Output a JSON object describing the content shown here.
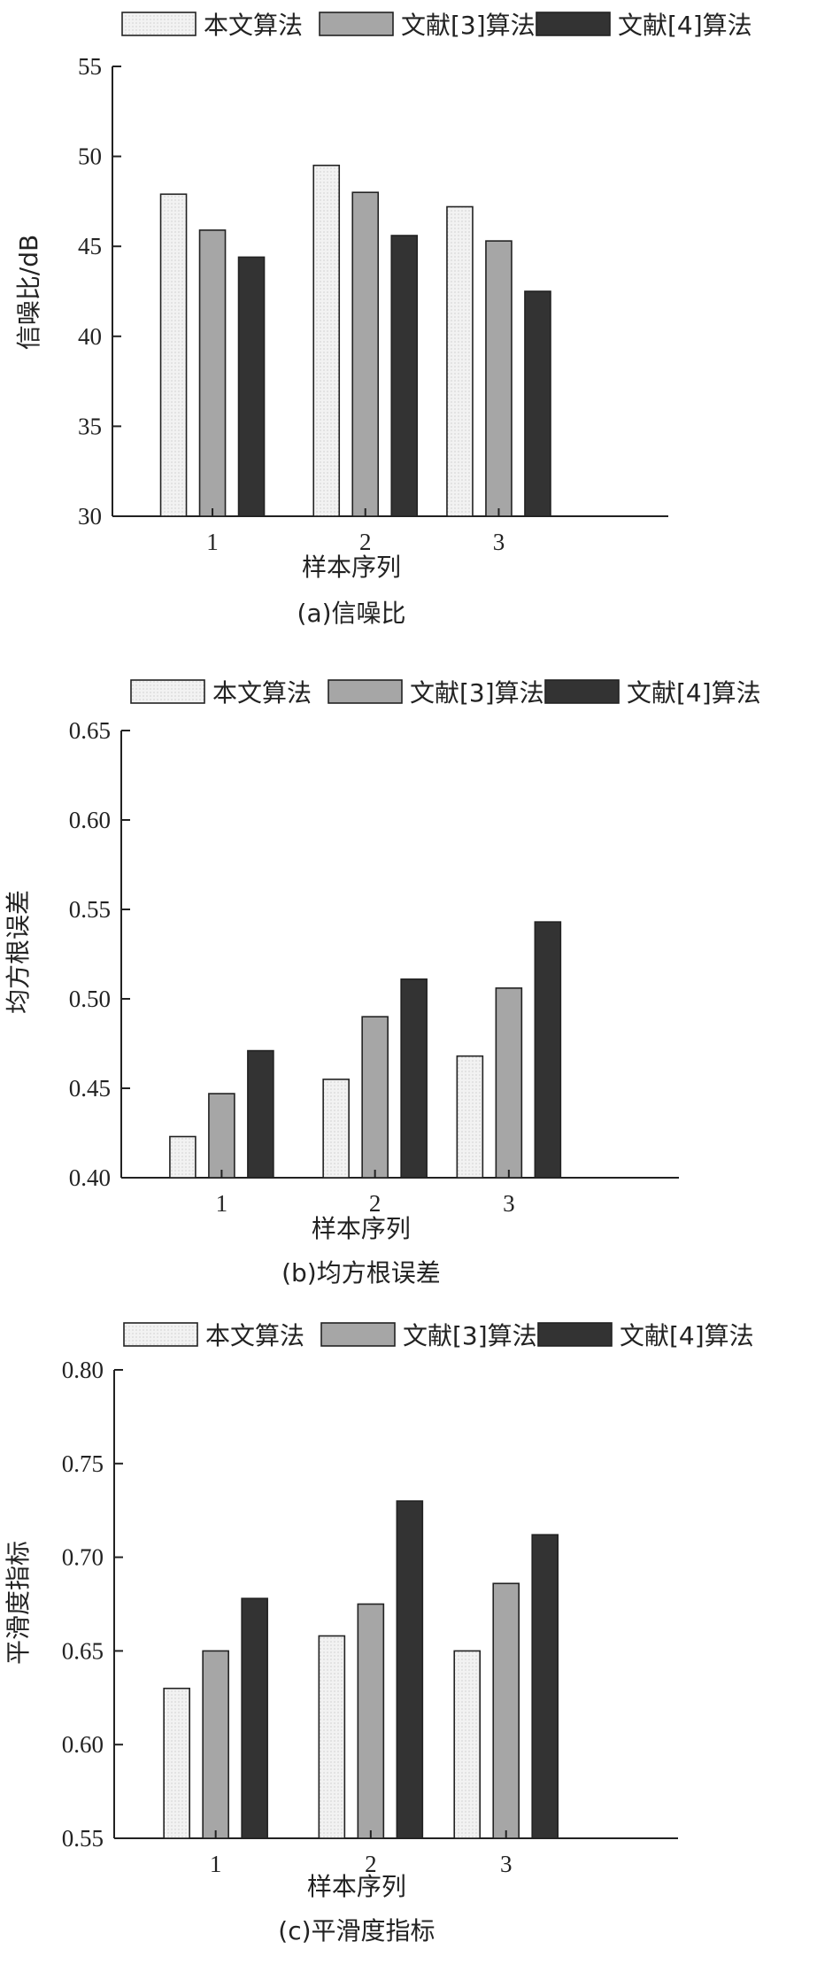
{
  "chart_data": [
    {
      "type": "bar",
      "categories": [
        "1",
        "2",
        "3"
      ],
      "series": [
        {
          "name": "本文算法",
          "values": [
            47.9,
            49.5,
            47.2
          ]
        },
        {
          "name": "文献[3]算法",
          "values": [
            45.9,
            48.0,
            45.3
          ]
        },
        {
          "name": "文献[4]算法",
          "values": [
            44.4,
            45.6,
            42.5
          ]
        }
      ],
      "ylim": [
        30,
        55
      ],
      "yticks": [
        "30",
        "35",
        "40",
        "45",
        "50",
        "55"
      ],
      "xlabel": "样本序列",
      "ylabel": "信噪比/dB",
      "caption": "(a)信噪比",
      "legend": "top"
    },
    {
      "type": "bar",
      "categories": [
        "1",
        "2",
        "3"
      ],
      "series": [
        {
          "name": "本文算法",
          "values": [
            0.423,
            0.455,
            0.468
          ]
        },
        {
          "name": "文献[3]算法",
          "values": [
            0.447,
            0.49,
            0.506
          ]
        },
        {
          "name": "文献[4]算法",
          "values": [
            0.471,
            0.511,
            0.543
          ]
        }
      ],
      "ylim": [
        0.4,
        0.65
      ],
      "yticks": [
        "0.40",
        "0.45",
        "0.50",
        "0.55",
        "0.60",
        "0.65"
      ],
      "xlabel": "样本序列",
      "ylabel": "均方根误差",
      "caption": "(b)均方根误差",
      "legend": "top"
    },
    {
      "type": "bar",
      "categories": [
        "1",
        "2",
        "3"
      ],
      "series": [
        {
          "name": "本文算法",
          "values": [
            0.63,
            0.658,
            0.65
          ]
        },
        {
          "name": "文献[3]算法",
          "values": [
            0.65,
            0.675,
            0.686
          ]
        },
        {
          "name": "文献[4]算法",
          "values": [
            0.678,
            0.73,
            0.712
          ]
        }
      ],
      "ylim": [
        0.55,
        0.8
      ],
      "yticks": [
        "0.55",
        "0.60",
        "0.65",
        "0.70",
        "0.75",
        "0.80"
      ],
      "xlabel": "样本序列",
      "ylabel": "平滑度指标",
      "caption": "(c)平滑度指标",
      "legend": "top"
    }
  ],
  "colors": {
    "series": [
      "#eeeeee",
      "#a6a6a6",
      "#333333"
    ],
    "axis": "#222222"
  }
}
